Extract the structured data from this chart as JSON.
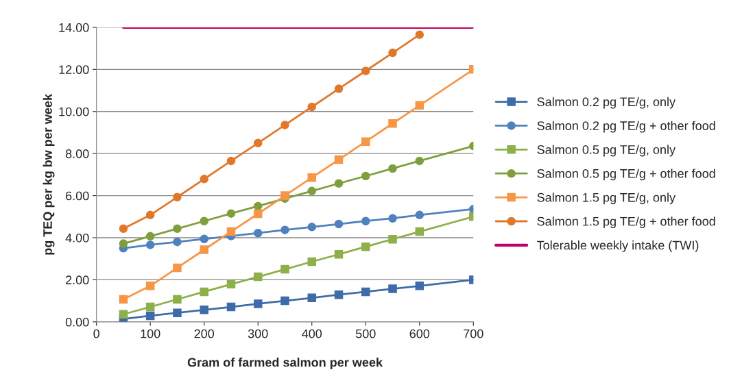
{
  "chart_data": {
    "type": "line",
    "xlabel": "Gram of farmed salmon per week",
    "ylabel": "pg TEQ per kg bw per week",
    "x": [
      50,
      100,
      150,
      200,
      250,
      300,
      350,
      400,
      450,
      500,
      550,
      600,
      700
    ],
    "series": [
      {
        "name": "Salmon 0.2 pg TE/g, only",
        "color": "#3e6ca8",
        "marker": "square",
        "values": [
          0.14,
          0.29,
          0.43,
          0.57,
          0.71,
          0.86,
          1.0,
          1.14,
          1.29,
          1.43,
          1.57,
          1.71,
          2.0
        ]
      },
      {
        "name": "Salmon 0.2 pg TE/g + other food",
        "color": "#4f81bd",
        "marker": "circle",
        "values": [
          3.5,
          3.66,
          3.8,
          3.94,
          4.08,
          4.22,
          4.37,
          4.51,
          4.65,
          4.79,
          4.92,
          5.08,
          5.36
        ]
      },
      {
        "name": "Salmon 0.5 pg TE/g, only",
        "color": "#8db04a",
        "marker": "square",
        "values": [
          0.36,
          0.71,
          1.07,
          1.43,
          1.79,
          2.14,
          2.5,
          2.86,
          3.21,
          3.57,
          3.93,
          4.29,
          5.0
        ]
      },
      {
        "name": "Salmon 0.5 pg TE/g + other food",
        "color": "#7f9f3f",
        "marker": "circle",
        "values": [
          3.72,
          4.07,
          4.43,
          4.79,
          5.15,
          5.5,
          5.86,
          6.22,
          6.58,
          6.93,
          7.29,
          7.65,
          8.36
        ]
      },
      {
        "name": "Salmon 1.5 pg TE/g, only",
        "color": "#f79646",
        "marker": "square",
        "values": [
          1.07,
          1.71,
          2.57,
          3.43,
          4.29,
          5.14,
          6.0,
          6.86,
          7.71,
          8.57,
          9.43,
          10.29,
          12.0
        ]
      },
      {
        "name": "Salmon 1.5 pg TE/g + other food",
        "color": "#e0782c",
        "marker": "circle",
        "values": [
          4.43,
          5.08,
          5.93,
          6.79,
          7.65,
          8.5,
          9.36,
          10.22,
          11.08,
          11.93,
          12.79,
          13.65,
          null
        ]
      },
      {
        "name": "Tolerable weekly intake (TWI)",
        "color": "#c0006a",
        "marker": "none",
        "values": [
          14,
          14,
          14,
          14,
          14,
          14,
          14,
          14,
          14,
          14,
          14,
          14,
          14
        ]
      }
    ],
    "xlim": [
      0,
      700
    ],
    "xticks": [
      0,
      100,
      200,
      300,
      400,
      500,
      600,
      700
    ],
    "ylim": [
      0,
      14
    ],
    "yticks": [
      {
        "value": 0,
        "label": "0.00"
      },
      {
        "value": 2,
        "label": "2.00"
      },
      {
        "value": 4,
        "label": "4.00"
      },
      {
        "value": 6,
        "label": "6.00"
      },
      {
        "value": 8,
        "label": "8.00"
      },
      {
        "value": 10,
        "label": "10.00"
      },
      {
        "value": 12,
        "label": "12.00"
      },
      {
        "value": 14,
        "label": "14.00"
      }
    ],
    "grid": "y",
    "legend": "right"
  }
}
